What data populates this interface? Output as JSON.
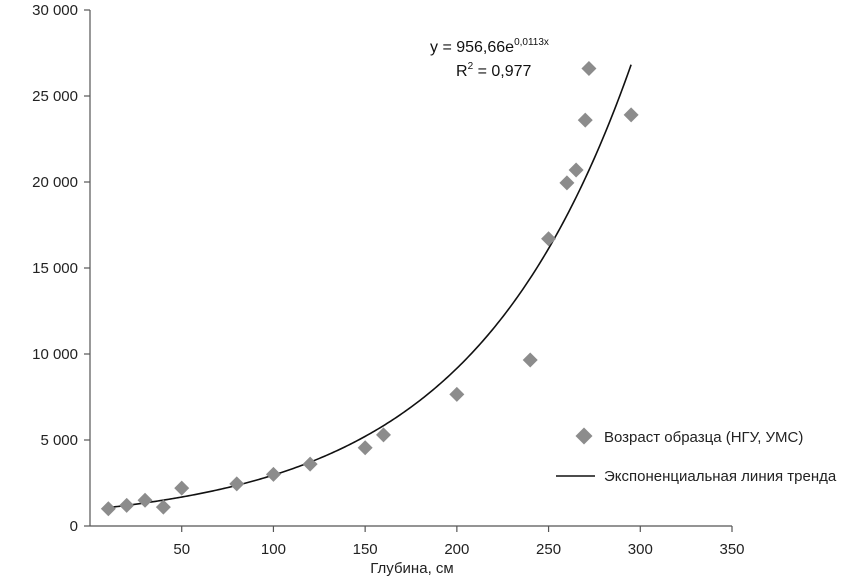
{
  "chart_data": {
    "type": "scatter",
    "xlabel": "Глубина, см",
    "ylabel": "",
    "xlim": [
      0,
      350
    ],
    "ylim": [
      0,
      30000
    ],
    "x_ticks": [
      50,
      100,
      150,
      200,
      250,
      300,
      350
    ],
    "x_tick_labels": [
      "50",
      "100",
      "150",
      "200",
      "250",
      "300",
      "350"
    ],
    "y_ticks": [
      0,
      5000,
      10000,
      15000,
      20000,
      25000,
      30000
    ],
    "y_tick_labels": [
      "0",
      "5 000",
      "10 000",
      "15 000",
      "20 000",
      "25 000",
      "30 000"
    ],
    "grid": false,
    "legend_position": "right",
    "series": [
      {
        "name": "Возраст образца (НГУ, УМС)",
        "kind": "scatter",
        "marker": "diamond",
        "color": "#8c8c8c",
        "points": [
          {
            "x": 10,
            "y": 1000
          },
          {
            "x": 20,
            "y": 1200
          },
          {
            "x": 30,
            "y": 1500
          },
          {
            "x": 40,
            "y": 1100
          },
          {
            "x": 50,
            "y": 2200
          },
          {
            "x": 80,
            "y": 2450
          },
          {
            "x": 100,
            "y": 3000
          },
          {
            "x": 120,
            "y": 3600
          },
          {
            "x": 150,
            "y": 4550
          },
          {
            "x": 160,
            "y": 5300
          },
          {
            "x": 200,
            "y": 7650
          },
          {
            "x": 240,
            "y": 9650
          },
          {
            "x": 250,
            "y": 16700
          },
          {
            "x": 260,
            "y": 19950
          },
          {
            "x": 265,
            "y": 20700
          },
          {
            "x": 270,
            "y": 23600
          },
          {
            "x": 272,
            "y": 26600
          },
          {
            "x": 295,
            "y": 23900
          }
        ]
      },
      {
        "name": "Экспоненциальная линия тренда",
        "kind": "trendline",
        "color": "#111111",
        "a": 956.66,
        "b": 0.0113,
        "x_range": [
          10,
          295
        ]
      }
    ],
    "equation": {
      "line1_prefix": "y = 956,66e",
      "line1_exponent": "0,0113x",
      "line2_prefix": "R",
      "line2_superscript": "2",
      "line2_value": " = 0,977"
    }
  }
}
